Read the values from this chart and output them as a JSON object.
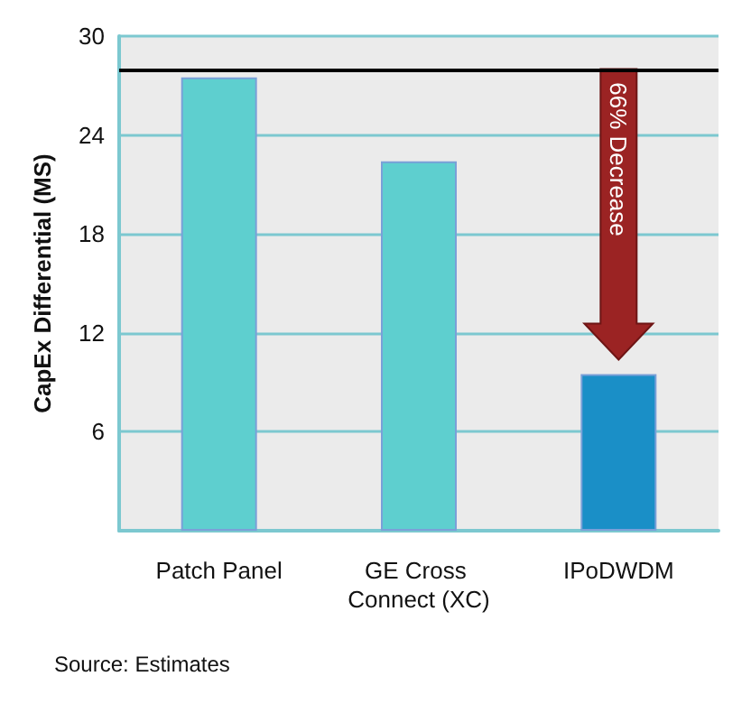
{
  "chart_data": {
    "type": "bar",
    "categories": [
      "Patch Panel",
      "GE Cross Connect (XC)",
      "IPoDWDM"
    ],
    "values": [
      27.5,
      22.4,
      9.5
    ],
    "colors": [
      "#5ecfcf",
      "#5ecfcf",
      "#1a8fc7"
    ],
    "ylabel": "CapEx Differential (MS)",
    "ylim": [
      0,
      30
    ],
    "yticks": [
      6,
      12,
      18,
      24,
      30
    ],
    "grid": "y",
    "ref_lines": [
      {
        "axis": "y",
        "value": 28,
        "color": "#000000"
      }
    ],
    "annotations": [
      "66% Decrease",
      "Source: Estimates"
    ]
  }
}
